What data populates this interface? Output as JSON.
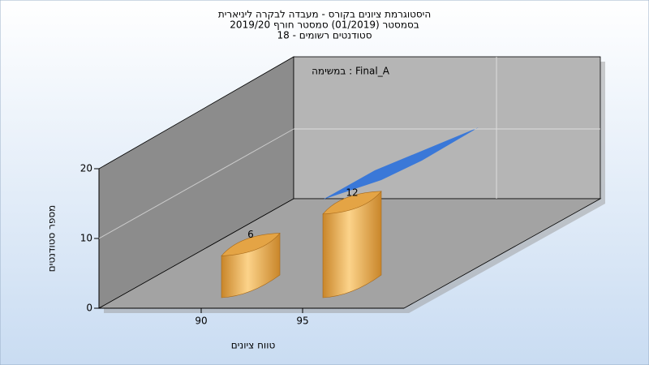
{
  "chart_data": {
    "type": "bar",
    "title": [
      "היסטוגרמת ציונים בקורס - מעבדה לבקרה ליניארית",
      "בסמסטר  (01/2019)  סמסטר חורף 2019/20",
      "סטודנטים רשומים - 18"
    ],
    "annotation": "במשימה : Final_A",
    "x_label": "טווח ציונים",
    "y_label": "מספר סטודנטים",
    "categories": [
      "90",
      "95"
    ],
    "values": [
      6,
      12
    ],
    "color": "#e8a43c",
    "ylim": [
      0,
      20
    ],
    "yticks": [
      0,
      10,
      20
    ],
    "grid": true
  }
}
